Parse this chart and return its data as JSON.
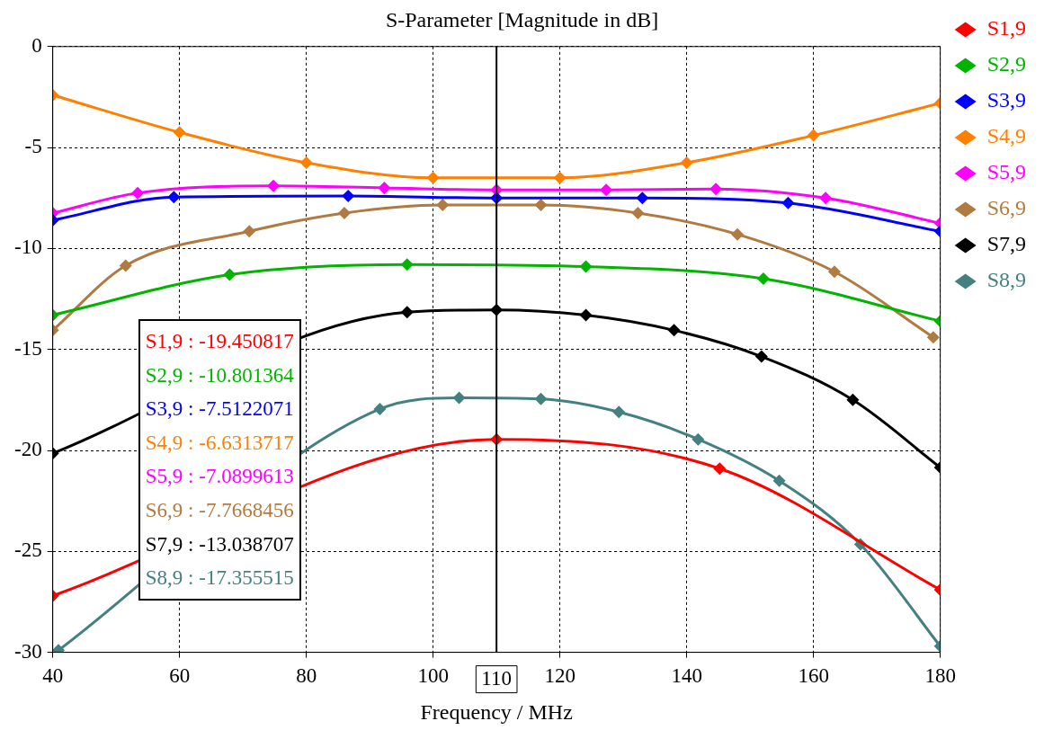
{
  "chart_data": {
    "type": "line",
    "title": "S-Parameter [Magnitude in dB]",
    "xlabel": "Frequency / MHz",
    "xlim": [
      40,
      180
    ],
    "xticks": [
      40,
      60,
      80,
      100,
      120,
      140,
      160,
      180
    ],
    "ylim": [
      -30,
      0
    ],
    "yticks": [
      -30,
      -25,
      -20,
      -15,
      -10,
      -5,
      0
    ],
    "grid": true,
    "legend": "right",
    "marker": "diamond",
    "line_style": "solid",
    "ref_lines": [
      {
        "axis": "x",
        "value": 110,
        "label": "110",
        "color": "#000000"
      }
    ],
    "annotations": [
      "S1,9 : -19.450817",
      "S2,9 : -10.801364",
      "S3,9 : -7.5122071",
      "S4,9 : -6.6313717",
      "S5,9 : -7.0899613",
      "S6,9 : -7.7668456",
      "S7,9 : -13.038707",
      "S8,9 : -17.355515"
    ],
    "series": [
      {
        "name": "S1,9",
        "color": "#ff0000",
        "x": [
          40,
          110,
          145.2,
          180
        ],
        "values": [
          -27.2,
          -19.45,
          -20.9,
          -26.9
        ]
      },
      {
        "name": "S2,9",
        "color": "#00b400",
        "x": [
          40,
          67.9,
          95.9,
          124.1,
          152.1,
          180
        ],
        "values": [
          -13.3,
          -11.3,
          -10.8,
          -10.9,
          -11.5,
          -13.6
        ]
      },
      {
        "name": "S3,9",
        "color": "#0000ff",
        "x": [
          40,
          59.1,
          86.6,
          110,
          133,
          156,
          180
        ],
        "values": [
          -8.6,
          -7.45,
          -7.4,
          -7.5,
          -7.5,
          -7.75,
          -9.15
        ]
      },
      {
        "name": "S4,9",
        "color": "#ff8000",
        "x": [
          40,
          60,
          80,
          100,
          120,
          140,
          160,
          180
        ],
        "values": [
          -2.4,
          -4.25,
          -5.75,
          -6.5,
          -6.5,
          -5.75,
          -4.4,
          -2.8
        ]
      },
      {
        "name": "S5,9",
        "color": "#ff00ff",
        "x": [
          40,
          53.4,
          74.8,
          92.3,
          110,
          127.3,
          144.6,
          161.9,
          180
        ],
        "values": [
          -8.25,
          -7.25,
          -6.9,
          -7.0,
          -7.1,
          -7.1,
          -7.05,
          -7.5,
          -8.75
        ]
      },
      {
        "name": "S6,9",
        "color": "#b07a40",
        "x": [
          40,
          51.5,
          71,
          86,
          101.5,
          117,
          132.3,
          148,
          163.3,
          178.9
        ],
        "values": [
          -14.05,
          -10.85,
          -9.15,
          -8.25,
          -7.85,
          -7.85,
          -8.25,
          -9.3,
          -11.15,
          -14.4
        ]
      },
      {
        "name": "S7,9",
        "color": "#000000",
        "x": [
          40,
          95.9,
          110,
          124.1,
          138,
          151.8,
          166.2,
          180
        ],
        "values": [
          -20.15,
          -13.15,
          -13.04,
          -13.3,
          -14.05,
          -15.35,
          -17.5,
          -20.85
        ]
      },
      {
        "name": "S8,9",
        "color": "#458080",
        "x": [
          40.9,
          91.6,
          104.1,
          117,
          129.3,
          141.8,
          154.6,
          167.4,
          180
        ],
        "values": [
          -29.9,
          -17.95,
          -17.4,
          -17.45,
          -18.1,
          -19.45,
          -21.5,
          -24.65,
          -29.7
        ]
      }
    ]
  }
}
